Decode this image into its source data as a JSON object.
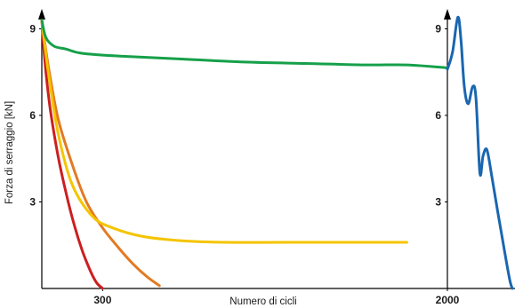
{
  "chart_data": {
    "type": "line",
    "title": "",
    "xlabel": "Numero di cicli",
    "ylabel": "Forza di serraggio [kN]",
    "ylim": [
      0,
      10
    ],
    "y_ticks": [
      3,
      6,
      9
    ],
    "x_ticks": [
      300,
      2000
    ],
    "grid": false,
    "legend": "none",
    "panels": [
      {
        "name": "main",
        "xlim": [
          0,
          2000
        ],
        "series": [
          {
            "color": "#cc1f1f",
            "x": [
              0,
              15,
              40,
              80,
              120,
              160,
              200,
              240,
              270,
              300
            ],
            "y": [
              9.3,
              7.9,
              6.3,
              4.6,
              3.3,
              2.2,
              1.3,
              0.6,
              0.2,
              0.0
            ]
          },
          {
            "color": "#e37a22",
            "x": [
              0,
              30,
              80,
              150,
              220,
              300,
              380,
              450,
              520,
              580
            ],
            "y": [
              9.3,
              7.8,
              5.9,
              4.3,
              3.0,
              2.1,
              1.4,
              0.85,
              0.4,
              0.1
            ]
          },
          {
            "color": "#f5c400",
            "x": [
              0,
              30,
              80,
              150,
              250,
              350,
              500,
              700,
              900,
              1200,
              1600,
              1800
            ],
            "y": [
              9.3,
              7.6,
              5.4,
              3.6,
              2.5,
              2.1,
              1.8,
              1.65,
              1.6,
              1.6,
              1.6,
              1.6
            ]
          },
          {
            "color": "#16a04a",
            "x": [
              0,
              20,
              60,
              120,
              200,
              400,
              700,
              1000,
              1300,
              1600,
              1800,
              2000
            ],
            "y": [
              9.3,
              8.7,
              8.4,
              8.3,
              8.15,
              8.05,
              7.95,
              7.85,
              7.8,
              7.75,
              7.75,
              7.65
            ]
          }
        ]
      },
      {
        "name": "right",
        "xlim": [
          0,
          10
        ],
        "series": [
          {
            "color": "#1a66b0",
            "x": [
              0,
              0.8,
              1.6,
              2.1,
              2.6,
              3.2,
              3.9,
              4.4,
              5.0,
              5.5,
              6.1,
              6.9,
              7.8,
              8.8,
              9.6,
              10.0
            ],
            "y": [
              7.6,
              8.2,
              9.4,
              8.6,
              7.0,
              6.4,
              7.0,
              6.6,
              4.0,
              4.6,
              4.8,
              3.8,
              2.6,
              1.3,
              0.3,
              0.0
            ]
          }
        ]
      }
    ]
  }
}
